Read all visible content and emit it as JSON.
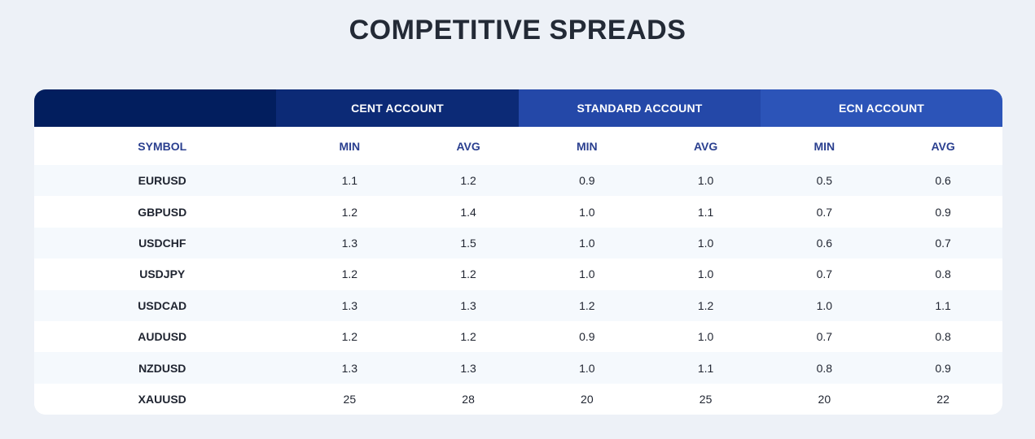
{
  "title": "COMPETITIVE SPREADS",
  "accounts": [
    "CENT ACCOUNT",
    "STANDARD ACCOUNT",
    "ECN ACCOUNT"
  ],
  "subheaders": {
    "symbol": "SYMBOL",
    "cols": [
      "MIN",
      "AVG",
      "MIN",
      "AVG",
      "MIN",
      "AVG"
    ]
  },
  "rows": [
    {
      "symbol": "EURUSD",
      "values": [
        "1.1",
        "1.2",
        "0.9",
        "1.0",
        "0.5",
        "0.6"
      ]
    },
    {
      "symbol": "GBPUSD",
      "values": [
        "1.2",
        "1.4",
        "1.0",
        "1.1",
        "0.7",
        "0.9"
      ]
    },
    {
      "symbol": "USDCHF",
      "values": [
        "1.3",
        "1.5",
        "1.0",
        "1.0",
        "0.6",
        "0.7"
      ]
    },
    {
      "symbol": "USDJPY",
      "values": [
        "1.2",
        "1.2",
        "1.0",
        "1.0",
        "0.7",
        "0.8"
      ]
    },
    {
      "symbol": "USDCAD",
      "values": [
        "1.3",
        "1.3",
        "1.2",
        "1.2",
        "1.0",
        "1.1"
      ]
    },
    {
      "symbol": "AUDUSD",
      "values": [
        "1.2",
        "1.2",
        "0.9",
        "1.0",
        "0.7",
        "0.8"
      ]
    },
    {
      "symbol": "NZDUSD",
      "values": [
        "1.3",
        "1.3",
        "1.0",
        "1.1",
        "0.8",
        "0.9"
      ]
    },
    {
      "symbol": "XAUUSD",
      "values": [
        "25",
        "28",
        "20",
        "25",
        "20",
        "22"
      ]
    }
  ]
}
